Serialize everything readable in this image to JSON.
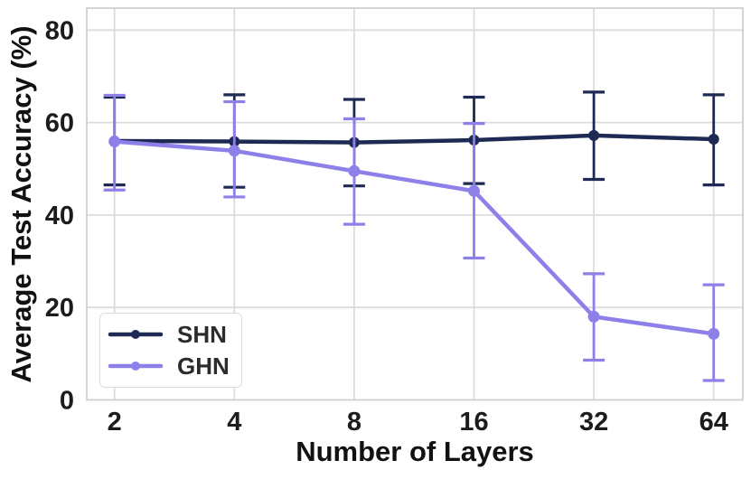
{
  "chart_data": {
    "type": "line",
    "title": "",
    "xlabel": "Number of Layers",
    "ylabel": "Average Test Accuracy (%)",
    "x_scale": "log2",
    "categories": [
      2,
      4,
      8,
      16,
      32,
      64
    ],
    "y_ticks": [
      0,
      20,
      40,
      60,
      80
    ],
    "ylim": [
      0,
      84.8
    ],
    "grid": true,
    "error_bars": true,
    "legend_position": "lower-left",
    "series": [
      {
        "name": "SHN",
        "color": "#1f2a54",
        "values": [
          56.0,
          55.9,
          55.7,
          56.2,
          57.2,
          56.4
        ],
        "err_low": [
          46.5,
          46.0,
          46.3,
          46.8,
          47.7,
          46.5
        ],
        "err_high": [
          65.5,
          66.0,
          65.0,
          65.5,
          66.6,
          66.0
        ]
      },
      {
        "name": "GHN",
        "color": "#8d80e8",
        "values": [
          55.9,
          53.9,
          49.5,
          45.2,
          18.0,
          14.3
        ],
        "err_low": [
          45.4,
          43.9,
          38.0,
          30.7,
          8.6,
          4.2
        ],
        "err_high": [
          65.9,
          64.5,
          60.8,
          59.8,
          27.3,
          24.9
        ]
      }
    ]
  },
  "colors": {
    "background": "#ffffff",
    "grid": "#dcdcdc",
    "spine": "#d0d0d0",
    "tick_label": "#1c1c1c",
    "axis_label": "#111111",
    "legend_text": "#2b2b2b",
    "legend_border": "#dcdcdc"
  }
}
